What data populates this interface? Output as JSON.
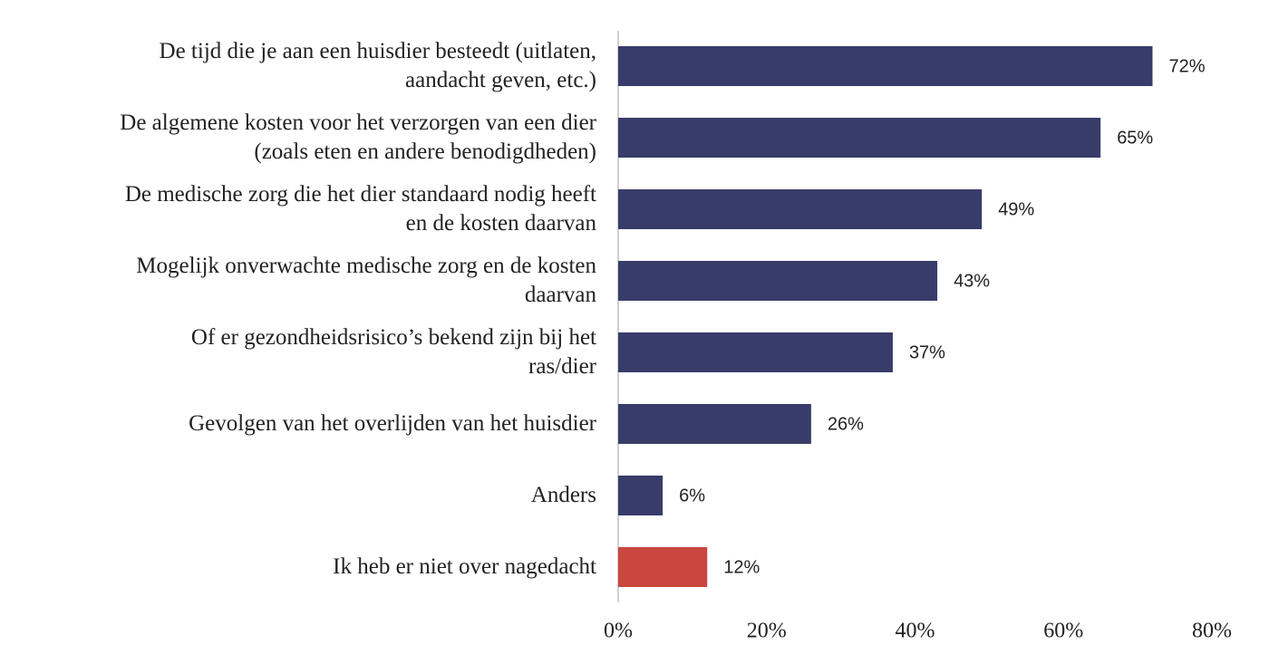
{
  "chart_data": {
    "type": "bar",
    "orientation": "horizontal",
    "categories": [
      "De tijd die je aan een huisdier besteedt (uitlaten,\naandacht geven, etc.)",
      "De algemene kosten voor het verzorgen van een dier\n(zoals eten en andere benodigdheden)",
      "De medische zorg die het dier standaard nodig heeft\nen de kosten daarvan",
      "Mogelijk onverwachte medische zorg en de kosten\ndaarvan",
      "Of er gezondheidsrisico’s bekend zijn bij het\nras/dier",
      "Gevolgen van het overlijden van het huisdier",
      "Anders",
      "Ik heb er niet over nagedacht"
    ],
    "values": [
      72,
      65,
      49,
      43,
      37,
      26,
      6,
      12
    ],
    "value_labels": [
      "72%",
      "65%",
      "49%",
      "43%",
      "37%",
      "26%",
      "6%",
      "12%"
    ],
    "colors": [
      "#383c6a",
      "#383c6a",
      "#383c6a",
      "#383c6a",
      "#383c6a",
      "#383c6a",
      "#383c6a",
      "#c9473f"
    ],
    "xlim": [
      0,
      80
    ],
    "xticks": [
      {
        "value": 0,
        "label": "0%"
      },
      {
        "value": 20,
        "label": "20%"
      },
      {
        "value": 40,
        "label": "40%"
      },
      {
        "value": 60,
        "label": "60%"
      },
      {
        "value": 80,
        "label": "80%"
      }
    ],
    "grid": false
  }
}
